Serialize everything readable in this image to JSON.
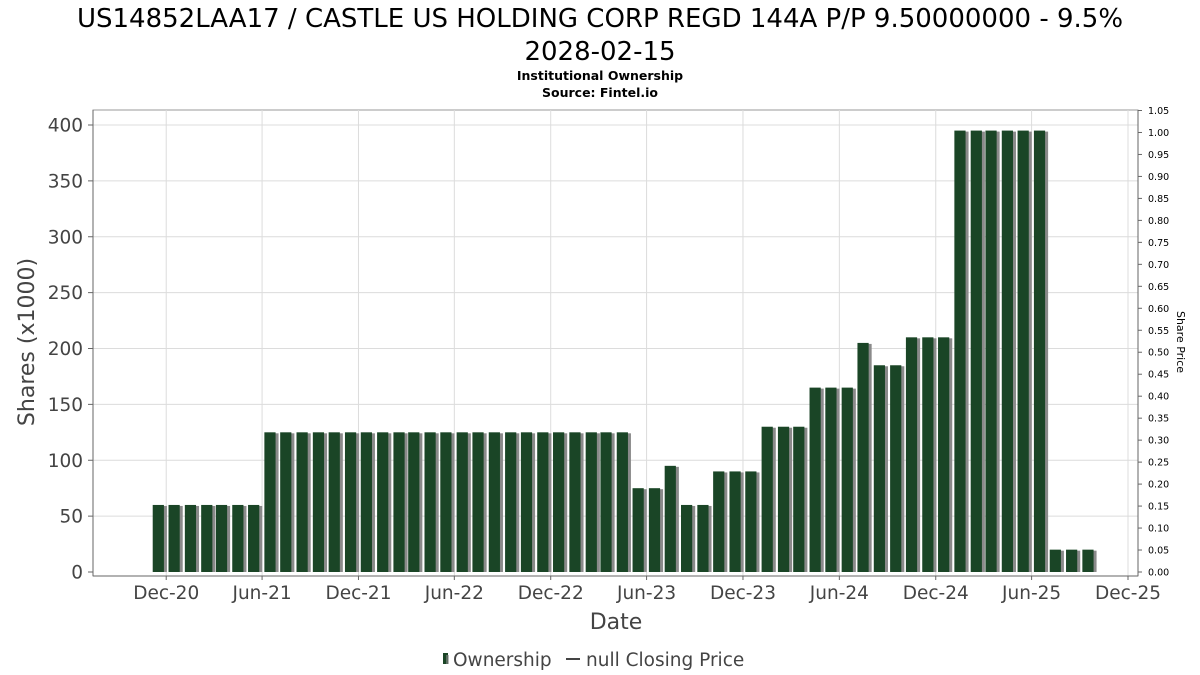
{
  "chart_data": {
    "type": "bar",
    "title": "US14852LAA17 / CASTLE US HOLDING CORP REGD 144A P/P 9.50000000 - 9.5% 2028-02-15",
    "title_lines": [
      "US14852LAA17 / CASTLE US HOLDING CORP REGD 144A P/P 9.50000000 - 9.5%",
      "2028-02-15"
    ],
    "subtitle": "Institutional Ownership",
    "source": "Source: Fintel.io",
    "xlabel": "Date",
    "ylabel": "Shares (x1000)",
    "ylabel_right": "Share Price",
    "xlim": [
      "2020-07-15",
      "2025-12-20"
    ],
    "ylim": [
      0,
      400
    ],
    "ylim_right": [
      0,
      1.05
    ],
    "y_ticks": [
      0,
      50,
      100,
      150,
      200,
      250,
      300,
      350,
      400
    ],
    "y_ticks_right": [
      "0.00",
      "0.05",
      "0.10",
      "0.15",
      "0.20",
      "0.25",
      "0.30",
      "0.35",
      "0.40",
      "0.45",
      "0.50",
      "0.55",
      "0.60",
      "0.65",
      "0.70",
      "0.75",
      "0.80",
      "0.85",
      "0.90",
      "0.95",
      "1.00",
      "1.05"
    ],
    "x_ticks": [
      {
        "label": "Dec-20",
        "date": "2020-12-01"
      },
      {
        "label": "Jun-21",
        "date": "2021-06-01"
      },
      {
        "label": "Dec-21",
        "date": "2021-12-01"
      },
      {
        "label": "Jun-22",
        "date": "2022-06-01"
      },
      {
        "label": "Dec-22",
        "date": "2022-12-01"
      },
      {
        "label": "Jun-23",
        "date": "2023-06-01"
      },
      {
        "label": "Dec-23",
        "date": "2023-12-01"
      },
      {
        "label": "Jun-24",
        "date": "2024-06-01"
      },
      {
        "label": "Dec-24",
        "date": "2024-12-01"
      },
      {
        "label": "Jun-25",
        "date": "2025-06-01"
      },
      {
        "label": "Dec-25",
        "date": "2025-12-01"
      }
    ],
    "grid": true,
    "legend_position": "bottom",
    "series": [
      {
        "name": "Ownership",
        "color": "#1a4526",
        "points": [
          [
            "2020-11-01",
            60
          ],
          [
            "2020-12-01",
            60
          ],
          [
            "2021-01-01",
            60
          ],
          [
            "2021-02-01",
            60
          ],
          [
            "2021-03-01",
            60
          ],
          [
            "2021-04-01",
            60
          ],
          [
            "2021-05-01",
            60
          ],
          [
            "2021-06-01",
            125
          ],
          [
            "2021-07-01",
            125
          ],
          [
            "2021-08-01",
            125
          ],
          [
            "2021-09-01",
            125
          ],
          [
            "2021-10-01",
            125
          ],
          [
            "2021-11-01",
            125
          ],
          [
            "2021-12-01",
            125
          ],
          [
            "2022-01-01",
            125
          ],
          [
            "2022-02-01",
            125
          ],
          [
            "2022-03-01",
            125
          ],
          [
            "2022-04-01",
            125
          ],
          [
            "2022-05-01",
            125
          ],
          [
            "2022-06-01",
            125
          ],
          [
            "2022-07-01",
            125
          ],
          [
            "2022-08-01",
            125
          ],
          [
            "2022-09-01",
            125
          ],
          [
            "2022-10-01",
            125
          ],
          [
            "2022-11-01",
            125
          ],
          [
            "2022-12-01",
            125
          ],
          [
            "2023-01-01",
            125
          ],
          [
            "2023-02-01",
            125
          ],
          [
            "2023-03-01",
            125
          ],
          [
            "2023-04-01",
            125
          ],
          [
            "2023-05-01",
            75
          ],
          [
            "2023-06-01",
            75
          ],
          [
            "2023-07-01",
            95
          ],
          [
            "2023-08-01",
            60
          ],
          [
            "2023-09-01",
            60
          ],
          [
            "2023-10-01",
            90
          ],
          [
            "2023-11-01",
            90
          ],
          [
            "2023-12-01",
            90
          ],
          [
            "2024-01-01",
            130
          ],
          [
            "2024-02-01",
            130
          ],
          [
            "2024-03-01",
            130
          ],
          [
            "2024-04-01",
            165
          ],
          [
            "2024-05-01",
            165
          ],
          [
            "2024-06-01",
            165
          ],
          [
            "2024-07-01",
            205
          ],
          [
            "2024-08-01",
            185
          ],
          [
            "2024-09-01",
            185
          ],
          [
            "2024-10-01",
            210
          ],
          [
            "2024-11-01",
            210
          ],
          [
            "2024-12-01",
            210
          ],
          [
            "2025-01-01",
            395
          ],
          [
            "2025-02-01",
            395
          ],
          [
            "2025-03-01",
            395
          ],
          [
            "2025-04-01",
            395
          ],
          [
            "2025-05-01",
            395
          ],
          [
            "2025-06-01",
            395
          ],
          [
            "2025-07-01",
            20
          ],
          [
            "2025-08-01",
            20
          ],
          [
            "2025-09-01",
            20
          ]
        ]
      },
      {
        "name": "null Closing Price",
        "type": "line",
        "color": "#444444",
        "points": []
      }
    ]
  }
}
